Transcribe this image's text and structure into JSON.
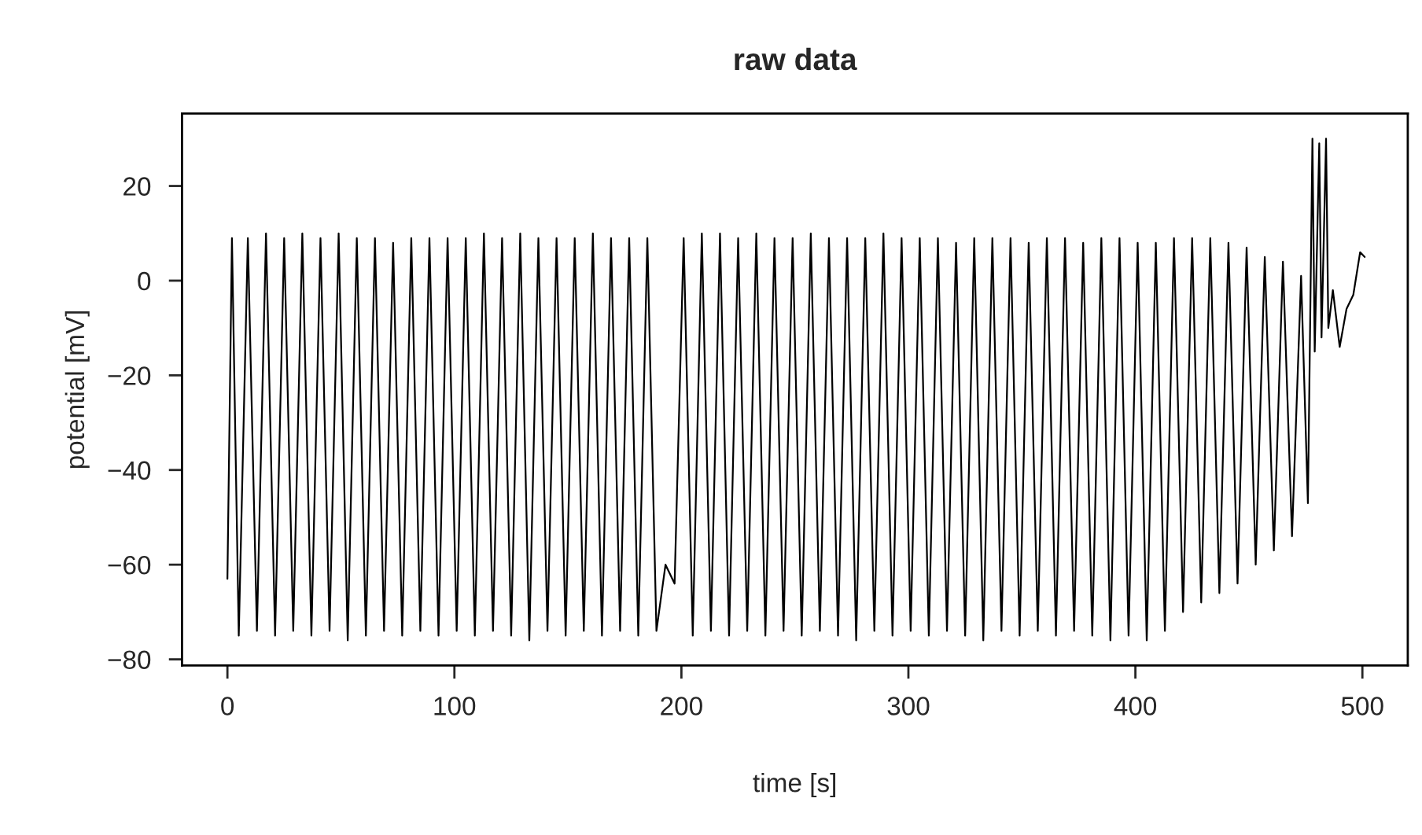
{
  "chart_data": {
    "type": "line",
    "title": "raw data",
    "xlabel": "time [s]",
    "ylabel": "potential [mV]",
    "xlim": [
      -20,
      520
    ],
    "ylim": [
      -81.3,
      35.3
    ],
    "xticks": [
      0,
      100,
      200,
      300,
      400,
      500
    ],
    "yticks": [
      -80,
      -60,
      -40,
      -20,
      0,
      20
    ],
    "grid": false,
    "series": [
      {
        "color": "#000000",
        "x": [
          0,
          2,
          5,
          9,
          13,
          17,
          21,
          25,
          29,
          33,
          37,
          41,
          45,
          49,
          53,
          57,
          61,
          65,
          69,
          73,
          77,
          81,
          85,
          89,
          93,
          97,
          101,
          105,
          109,
          113,
          117,
          121,
          125,
          129,
          133,
          137,
          141,
          145,
          149,
          153,
          157,
          161,
          165,
          169,
          173,
          177,
          181,
          185,
          189,
          193,
          197,
          201,
          205,
          209,
          213,
          217,
          221,
          225,
          229,
          233,
          237,
          241,
          245,
          249,
          253,
          257,
          261,
          265,
          269,
          273,
          277,
          281,
          285,
          289,
          293,
          297,
          301,
          305,
          309,
          313,
          317,
          321,
          325,
          329,
          333,
          337,
          341,
          345,
          349,
          353,
          357,
          361,
          365,
          369,
          373,
          377,
          381,
          385,
          389,
          393,
          397,
          401,
          405,
          409,
          413,
          417,
          421,
          425,
          429,
          433,
          437,
          441,
          445,
          449,
          453,
          457,
          461,
          465,
          469,
          473,
          476,
          478,
          479,
          481,
          482,
          484,
          485,
          487,
          490,
          493,
          496,
          499,
          501
        ],
        "values": [
          -63,
          9,
          -75,
          9,
          -74,
          10,
          -75,
          9,
          -74,
          10,
          -75,
          9,
          -74,
          10,
          -76,
          9,
          -75,
          9,
          -74,
          8,
          -75,
          9,
          -74,
          9,
          -75,
          9,
          -74,
          9,
          -75,
          10,
          -74,
          9,
          -75,
          10,
          -76,
          9,
          -74,
          9,
          -75,
          9,
          -74,
          10,
          -75,
          9,
          -74,
          9,
          -75,
          9,
          -74,
          -60,
          -64,
          9,
          -75,
          10,
          -74,
          10,
          -75,
          9,
          -74,
          10,
          -75,
          9,
          -74,
          9,
          -75,
          10,
          -74,
          9,
          -75,
          9,
          -76,
          9,
          -74,
          10,
          -75,
          9,
          -74,
          9,
          -75,
          9,
          -74,
          8,
          -75,
          9,
          -76,
          9,
          -74,
          9,
          -75,
          8,
          -74,
          9,
          -75,
          9,
          -74,
          8,
          -75,
          9,
          -76,
          9,
          -75,
          8,
          -76,
          8,
          -74,
          9,
          -70,
          9,
          -68,
          9,
          -66,
          8,
          -64,
          7,
          -60,
          5,
          -57,
          4,
          -54,
          1,
          -47,
          30,
          -15,
          29,
          -12,
          30,
          -10,
          -2,
          -14,
          -6,
          -3,
          6,
          5
        ]
      }
    ]
  }
}
